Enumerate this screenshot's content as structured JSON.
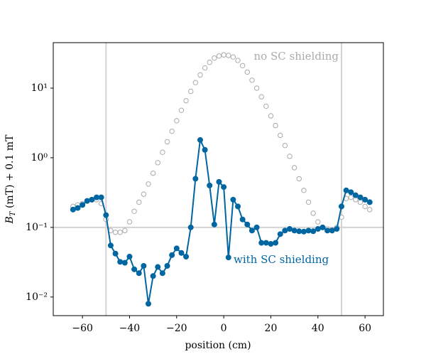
{
  "chart_data": {
    "type": "line",
    "xlabel": "position (cm)",
    "ylabel": {
      "symbol": "B",
      "subscript": "T",
      "text": " (mT) + 0.1 mT"
    },
    "log_y": true,
    "xlim": [
      -72.4,
      67.8
    ],
    "ylim": [
      0.0054,
      45
    ],
    "xticks": [
      {
        "value": -60,
        "label": "−60"
      },
      {
        "value": -40,
        "label": "−40"
      },
      {
        "value": -20,
        "label": "−20"
      },
      0,
      20,
      40,
      60
    ],
    "yticks": [
      {
        "value": 0.01,
        "label": "10⁻²"
      },
      {
        "value": 0.1,
        "label": "10⁻¹"
      },
      {
        "value": 1,
        "label": "10⁰"
      },
      {
        "value": 10,
        "label": "10¹"
      }
    ],
    "vlines": [
      -50,
      50
    ],
    "hlines": [
      0.1
    ],
    "refline_color": "#d3d3d3",
    "x": [
      -64,
      -62,
      -60,
      -58,
      -56,
      -54,
      -52,
      -50,
      -48,
      -46,
      -44,
      -42,
      -40,
      -38,
      -36,
      -34,
      -32,
      -30,
      -28,
      -26,
      -24,
      -22,
      -20,
      -18,
      -16,
      -14,
      -12,
      -10,
      -8,
      -6,
      -4,
      -2,
      0,
      2,
      4,
      6,
      8,
      10,
      12,
      14,
      16,
      18,
      20,
      22,
      24,
      26,
      28,
      30,
      32,
      34,
      36,
      38,
      40,
      42,
      44,
      46,
      48,
      50,
      52,
      54,
      56,
      58,
      60,
      62
    ],
    "series": [
      {
        "name": "no SC shielding",
        "color": "#aaaaaa",
        "marker": "open",
        "line": false,
        "values": [
          0.2,
          0.21,
          0.22,
          0.24,
          0.25,
          0.25,
          0.22,
          0.13,
          0.09,
          0.085,
          0.085,
          0.09,
          0.12,
          0.17,
          0.23,
          0.3,
          0.42,
          0.6,
          0.85,
          1.2,
          1.7,
          2.4,
          3.4,
          4.8,
          6.6,
          9,
          12,
          15.5,
          19.5,
          23.5,
          27,
          29,
          30,
          29.5,
          28,
          25,
          21,
          17,
          13,
          10,
          7.5,
          5.5,
          4,
          2.9,
          2.1,
          1.5,
          1.05,
          0.72,
          0.5,
          0.34,
          0.23,
          0.16,
          0.12,
          0.1,
          0.095,
          0.092,
          0.1,
          0.14,
          0.26,
          0.27,
          0.25,
          0.23,
          0.2,
          0.18
        ]
      },
      {
        "name": "with SC shielding",
        "color": "#0066a2",
        "marker": "filled",
        "line": true,
        "values": [
          0.18,
          0.19,
          0.21,
          0.24,
          0.25,
          0.27,
          0.27,
          0.15,
          0.055,
          0.042,
          0.032,
          0.031,
          0.038,
          0.025,
          0.022,
          0.028,
          0.008,
          0.02,
          0.027,
          0.022,
          0.028,
          0.04,
          0.05,
          0.043,
          0.038,
          0.1,
          0.5,
          1.8,
          1.3,
          0.4,
          0.11,
          0.45,
          0.38,
          0.037,
          0.25,
          0.2,
          0.13,
          0.11,
          0.09,
          0.1,
          0.06,
          0.06,
          0.058,
          0.06,
          0.08,
          0.09,
          0.095,
          0.09,
          0.088,
          0.087,
          0.09,
          0.088,
          0.095,
          0.1,
          0.09,
          0.09,
          0.095,
          0.2,
          0.34,
          0.32,
          0.29,
          0.27,
          0.25,
          0.23
        ]
      }
    ]
  }
}
